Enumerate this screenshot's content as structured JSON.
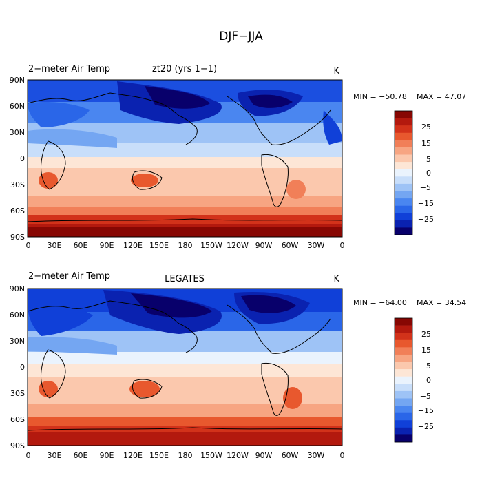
{
  "main_title": "DJF−JJA",
  "palette": [
    "#08006b",
    "#0a22b0",
    "#1040d8",
    "#2a66e8",
    "#4a86f0",
    "#74a6f2",
    "#9ec3f6",
    "#c8defa",
    "#eaf3fd",
    "#fde6d6",
    "#fbc8ad",
    "#f7a582",
    "#f17f58",
    "#e8582e",
    "#d2321a",
    "#b3190e",
    "#870703"
  ],
  "panels": [
    {
      "title_left": "2−meter Air Temp",
      "title_center": "zt20  (yrs 1−1)",
      "units": "K",
      "min_label": "MIN = −50.78",
      "max_label": "MAX =  47.07",
      "colorbar_labels": [
        "25",
        "15",
        "5",
        "0",
        "−5",
        "−15",
        "−25"
      ]
    },
    {
      "title_left": "2−meter Air Temp",
      "title_center": "LEGATES",
      "units": "K",
      "min_label": "MIN = −64.00",
      "max_label": "MAX =  34.54",
      "colorbar_labels": [
        "25",
        "15",
        "5",
        "0",
        "−5",
        "−15",
        "−25"
      ]
    }
  ],
  "lat_labels": [
    "90N",
    "60N",
    "30N",
    "0",
    "30S",
    "60S",
    "90S"
  ],
  "lon_labels": [
    "0",
    "30E",
    "60E",
    "90E",
    "120E",
    "150E",
    "180",
    "150W",
    "120W",
    "90W",
    "60W",
    "30W",
    "0"
  ]
}
